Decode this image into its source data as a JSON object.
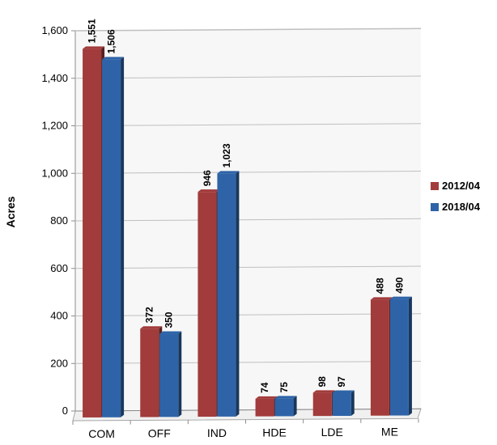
{
  "chart_data": {
    "type": "bar",
    "ylabel": "Acres",
    "ylim": [
      0,
      1600
    ],
    "yticks": [
      "0",
      "200",
      "400",
      "600",
      "800",
      "1,000",
      "1,200",
      "1,400",
      "1,600"
    ],
    "categories": [
      "COM",
      "OFF",
      "IND",
      "HDE",
      "LDE",
      "ME"
    ],
    "series": [
      {
        "name": "2012/04",
        "color": "#A23B3B",
        "values": [
          1551,
          372,
          946,
          74,
          98,
          488
        ],
        "labels": [
          "1,551",
          "372",
          "946",
          "74",
          "98",
          "488"
        ]
      },
      {
        "name": "2018/04",
        "color": "#2E64A7",
        "values": [
          1506,
          350,
          1023,
          75,
          97,
          490
        ],
        "labels": [
          "1,506",
          "350",
          "1,023",
          "75",
          "97",
          "490"
        ]
      }
    ],
    "grid": true,
    "legend_position": "right"
  }
}
